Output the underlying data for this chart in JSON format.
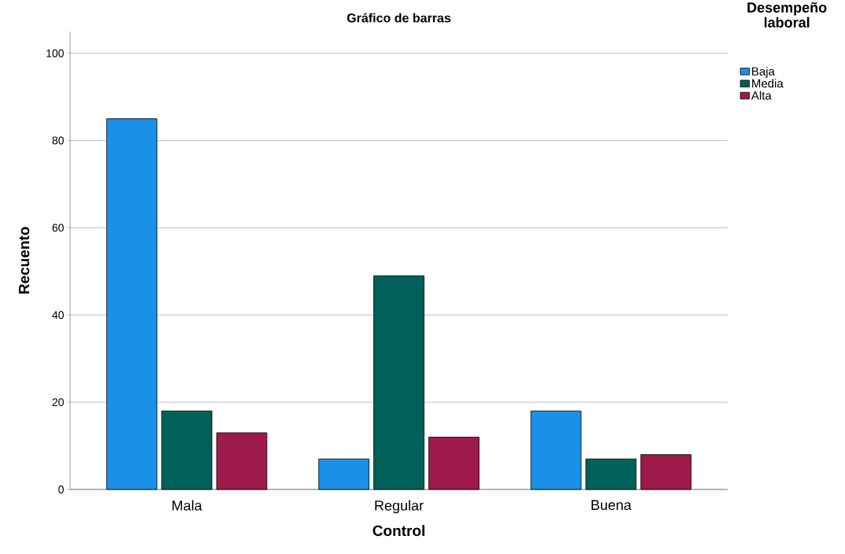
{
  "chart_data": {
    "type": "bar",
    "title": "Gráfico de barras",
    "xlabel": "Control",
    "ylabel": "Recuento",
    "legend_title": "Desempeño laboral",
    "categories": [
      "Mala",
      "Regular",
      "Buena"
    ],
    "series": [
      {
        "name": "Baja",
        "color": "#1a90e8",
        "values": [
          85,
          7,
          18
        ]
      },
      {
        "name": "Media",
        "color": "#00605a",
        "values": [
          18,
          49,
          7
        ]
      },
      {
        "name": "Alta",
        "color": "#9e1a4a",
        "values": [
          13,
          12,
          8
        ]
      }
    ],
    "ylim": [
      0,
      105
    ],
    "yticks": [
      0,
      20,
      40,
      60,
      80,
      100
    ],
    "grid": "y",
    "legend": "top right"
  }
}
